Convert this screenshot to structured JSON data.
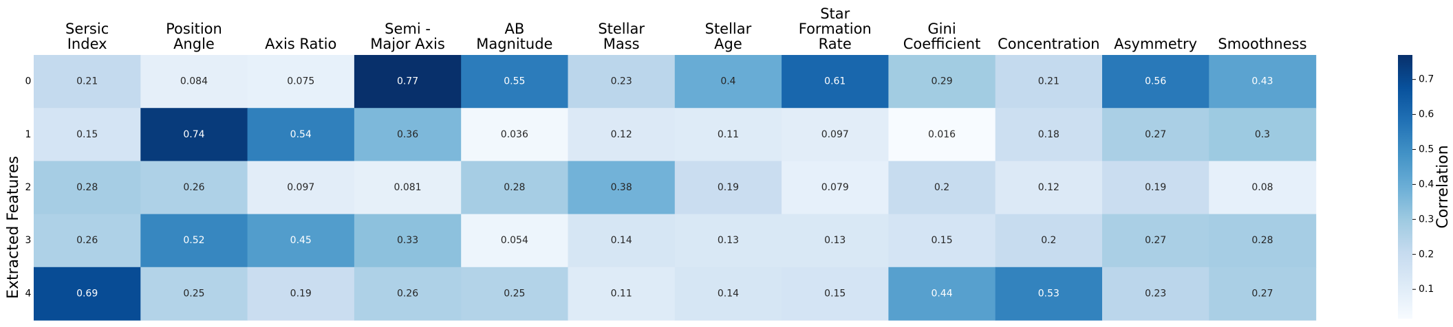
{
  "chart_data": {
    "type": "heatmap",
    "columns": [
      [
        "Sersic",
        "Index"
      ],
      [
        "Position",
        "Angle"
      ],
      [
        "Axis Ratio"
      ],
      [
        "Semi -",
        "Major Axis"
      ],
      [
        "AB",
        "Magnitude"
      ],
      [
        "Stellar",
        "Mass"
      ],
      [
        "Stellar",
        "Age"
      ],
      [
        "Star",
        "Formation",
        "Rate"
      ],
      [
        "Gini",
        "Coefficient"
      ],
      [
        "Concentration"
      ],
      [
        "Asymmetry"
      ],
      [
        "Smoothness"
      ]
    ],
    "rows": [
      "0",
      "1",
      "2",
      "3",
      "4"
    ],
    "values": [
      [
        0.21,
        0.084,
        0.075,
        0.77,
        0.55,
        0.23,
        0.4,
        0.61,
        0.29,
        0.21,
        0.56,
        0.43
      ],
      [
        0.15,
        0.74,
        0.54,
        0.36,
        0.036,
        0.12,
        0.11,
        0.097,
        0.016,
        0.18,
        0.27,
        0.3
      ],
      [
        0.28,
        0.26,
        0.097,
        0.081,
        0.28,
        0.38,
        0.19,
        0.079,
        0.2,
        0.12,
        0.19,
        0.08
      ],
      [
        0.26,
        0.52,
        0.45,
        0.33,
        0.054,
        0.14,
        0.13,
        0.13,
        0.15,
        0.2,
        0.27,
        0.28
      ],
      [
        0.69,
        0.25,
        0.19,
        0.26,
        0.25,
        0.11,
        0.14,
        0.15,
        0.44,
        0.53,
        0.23,
        0.27
      ]
    ],
    "ylabel": "Extracted Features",
    "colorbar_label": "Correlation",
    "colorbar_ticks": [
      "0.1",
      "0.2",
      "0.3",
      "0.4",
      "0.5",
      "0.6",
      "0.7"
    ],
    "colorbar_range": [
      0.016,
      0.77
    ],
    "colormap": "Blues",
    "colors": {
      "low": "#f7fbff",
      "high": "#08306b"
    }
  }
}
